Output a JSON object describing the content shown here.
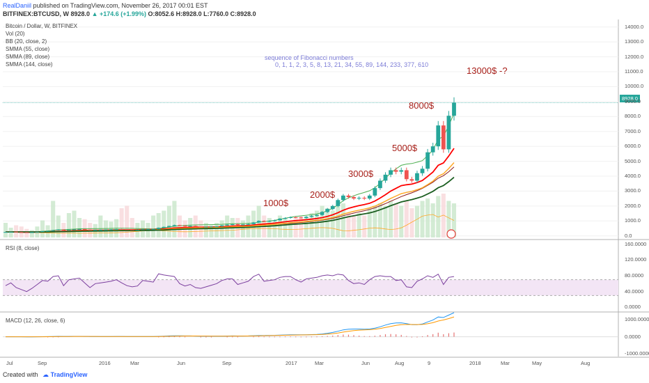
{
  "header": {
    "author": "RealDaniil",
    "published": "published on TradingView.com, November 26, 2017 00:01 EST",
    "symbol_line": "BITFINEX:BTCUSD, W",
    "price": "8928.0",
    "change": "▲ +174.6 (+1.99%)",
    "ohlc": "O:8052.6 H:8928.0 L:7760.0 C:8928.0"
  },
  "legend": {
    "title": "Bitcoin / Dollar, W, BITFINEX",
    "items": [
      "Vol (20)",
      "BB (20, close, 2)",
      "SMMA (55, close)",
      "SMMA (89, close)",
      "SMMA (144, close)"
    ]
  },
  "annotations": {
    "fib_title": "sequence of Fibonacci numbers",
    "fib_numbers": "0, 1, 1, 2, 3, 5, 8, 13, 21, 34, 55, 89, 144, 233, 377, 610",
    "target": "13000$ -?",
    "level_8000": "8000$",
    "level_5000": "5000$",
    "level_3000": "3000$",
    "level_2000": "2000$",
    "level_1000": "1000$"
  },
  "rsi": {
    "label": "RSI (8, close)"
  },
  "macd": {
    "label": "MACD (12, 26, close, 6)"
  },
  "footer": {
    "created_with": "Created with",
    "brand": "TradingView"
  },
  "colors": {
    "up": "#26a69a",
    "down": "#ef5350",
    "bb": "#4caf50",
    "smma55": "#ff0000",
    "smma89": "#ffa726",
    "smma144": "#1b5e20",
    "rsi": "#7b3f9e",
    "macd": "#2196f3",
    "signal": "#ff9800"
  },
  "chart_data": [
    {
      "type": "candlestick",
      "title": "Bitcoin / Dollar, W, BITFINEX",
      "ylim": [
        -200,
        14500
      ],
      "yticks": [
        "14000.0",
        "13000.0",
        "12000.0",
        "11000.0",
        "10000.0",
        "9000.0",
        "8000.0",
        "7000.0",
        "6000.0",
        "5000.0",
        "4000.0",
        "3000.0",
        "2000.0",
        "1000.0",
        "0.0"
      ],
      "ytick_values": [
        14000,
        13000,
        12000,
        11000,
        10000,
        9000,
        8000,
        7000,
        6000,
        5000,
        4000,
        3000,
        2000,
        1000,
        0
      ],
      "xticks": [
        "Jul",
        "Sep",
        "2016",
        "Mar",
        "Jun",
        "Sep",
        "2017",
        "Mar",
        "Jun",
        "Aug",
        "9",
        "2018",
        "Mar",
        "May",
        "Aug"
      ],
      "last_price": "8928.0",
      "closes": [
        260,
        280,
        250,
        240,
        230,
        245,
        270,
        310,
        330,
        380,
        420,
        360,
        410,
        430,
        450,
        420,
        380,
        400,
        410,
        420,
        430,
        450,
        440,
        420,
        410,
        415,
        440,
        450,
        455,
        540,
        600,
        660,
        720,
        680,
        650,
        660,
        620,
        600,
        610,
        620,
        640,
        700,
        750,
        780,
        730,
        760,
        790,
        900,
        1000,
        960,
        1000,
        1050,
        1150,
        1200,
        1250,
        1230,
        1200,
        1280,
        1340,
        1400,
        1600,
        1800,
        2000,
        2400,
        2700,
        2600,
        2500,
        2550,
        2500,
        2700,
        3200,
        3700,
        4100,
        4400,
        4300,
        4400,
        3800,
        3700,
        4200,
        4500,
        5600,
        6000,
        7400,
        5800,
        8050,
        8928
      ],
      "volume": [
        12,
        8,
        10,
        9,
        7,
        6,
        9,
        14,
        10,
        30,
        18,
        12,
        20,
        22,
        16,
        15,
        12,
        11,
        18,
        14,
        13,
        15,
        24,
        26,
        16,
        12,
        14,
        12,
        18,
        20,
        22,
        26,
        30,
        18,
        14,
        16,
        18,
        14,
        12,
        10,
        12,
        14,
        18,
        16,
        16,
        14,
        18,
        22,
        26,
        18,
        16,
        14,
        18,
        16,
        14,
        16,
        18,
        16,
        20,
        22,
        26,
        24,
        22,
        30,
        28,
        20,
        18,
        20,
        18,
        24,
        26,
        28,
        26,
        30,
        28,
        26,
        30,
        24,
        26,
        30,
        32,
        28,
        34,
        36,
        30,
        28
      ]
    },
    {
      "type": "line",
      "title": "RSI (8, close)",
      "ylim": [
        -10,
        170
      ],
      "yticks": [
        "160.0000",
        "120.0000",
        "80.0000",
        "40.0000",
        "0.0000"
      ],
      "ytick_values": [
        160,
        120,
        80,
        40,
        0
      ],
      "band": [
        30,
        70
      ],
      "values": [
        55,
        62,
        50,
        45,
        40,
        48,
        58,
        68,
        66,
        78,
        80,
        55,
        70,
        72,
        74,
        62,
        50,
        60,
        62,
        64,
        66,
        70,
        62,
        55,
        52,
        54,
        68,
        66,
        64,
        85,
        82,
        80,
        78,
        60,
        54,
        58,
        50,
        48,
        52,
        56,
        60,
        68,
        72,
        72,
        58,
        62,
        66,
        78,
        84,
        66,
        68,
        70,
        76,
        78,
        78,
        70,
        64,
        72,
        74,
        76,
        80,
        82,
        80,
        84,
        82,
        68,
        60,
        62,
        58,
        70,
        78,
        80,
        78,
        78,
        68,
        70,
        52,
        50,
        66,
        72,
        80,
        76,
        84,
        58,
        76,
        78
      ]
    },
    {
      "type": "line",
      "title": "MACD (12, 26, close, 6)",
      "ylim": [
        -1150,
        1400
      ],
      "yticks": [
        "1000.0000",
        "0.0000",
        "-1000.0000"
      ],
      "ytick_values": [
        1000,
        0,
        -1000
      ],
      "series": [
        {
          "name": "MACD",
          "values": [
            0,
            2,
            0,
            -2,
            -4,
            -3,
            0,
            5,
            8,
            15,
            22,
            18,
            20,
            22,
            24,
            20,
            15,
            14,
            15,
            16,
            17,
            19,
            18,
            15,
            12,
            11,
            13,
            14,
            15,
            25,
            35,
            48,
            58,
            55,
            50,
            48,
            42,
            36,
            32,
            30,
            30,
            35,
            42,
            48,
            46,
            46,
            48,
            60,
            75,
            78,
            80,
            85,
            95,
            105,
            115,
            115,
            112,
            118,
            125,
            135,
            160,
            200,
            250,
            320,
            400,
            440,
            450,
            450,
            440,
            450,
            500,
            580,
            680,
            760,
            800,
            810,
            760,
            700,
            700,
            740,
            860,
            970,
            1150,
            1120,
            1260,
            1400
          ]
        },
        {
          "name": "Signal",
          "values": [
            0,
            1,
            1,
            0,
            -1,
            -2,
            -1,
            1,
            3,
            7,
            12,
            14,
            16,
            18,
            20,
            20,
            19,
            18,
            17,
            16,
            16,
            17,
            17,
            16,
            15,
            14,
            14,
            14,
            14,
            17,
            22,
            29,
            37,
            42,
            44,
            45,
            44,
            42,
            39,
            36,
            34,
            34,
            36,
            39,
            41,
            42,
            44,
            48,
            56,
            63,
            68,
            73,
            80,
            88,
            96,
            102,
            105,
            109,
            114,
            120,
            132,
            152,
            180,
            220,
            271,
            319,
            357,
            383,
            400,
            414,
            439,
            479,
            537,
            601,
            658,
            701,
            717,
            712,
            708,
            717,
            758,
            819,
            914,
            973,
            1055,
            1153
          ]
        }
      ]
    }
  ]
}
